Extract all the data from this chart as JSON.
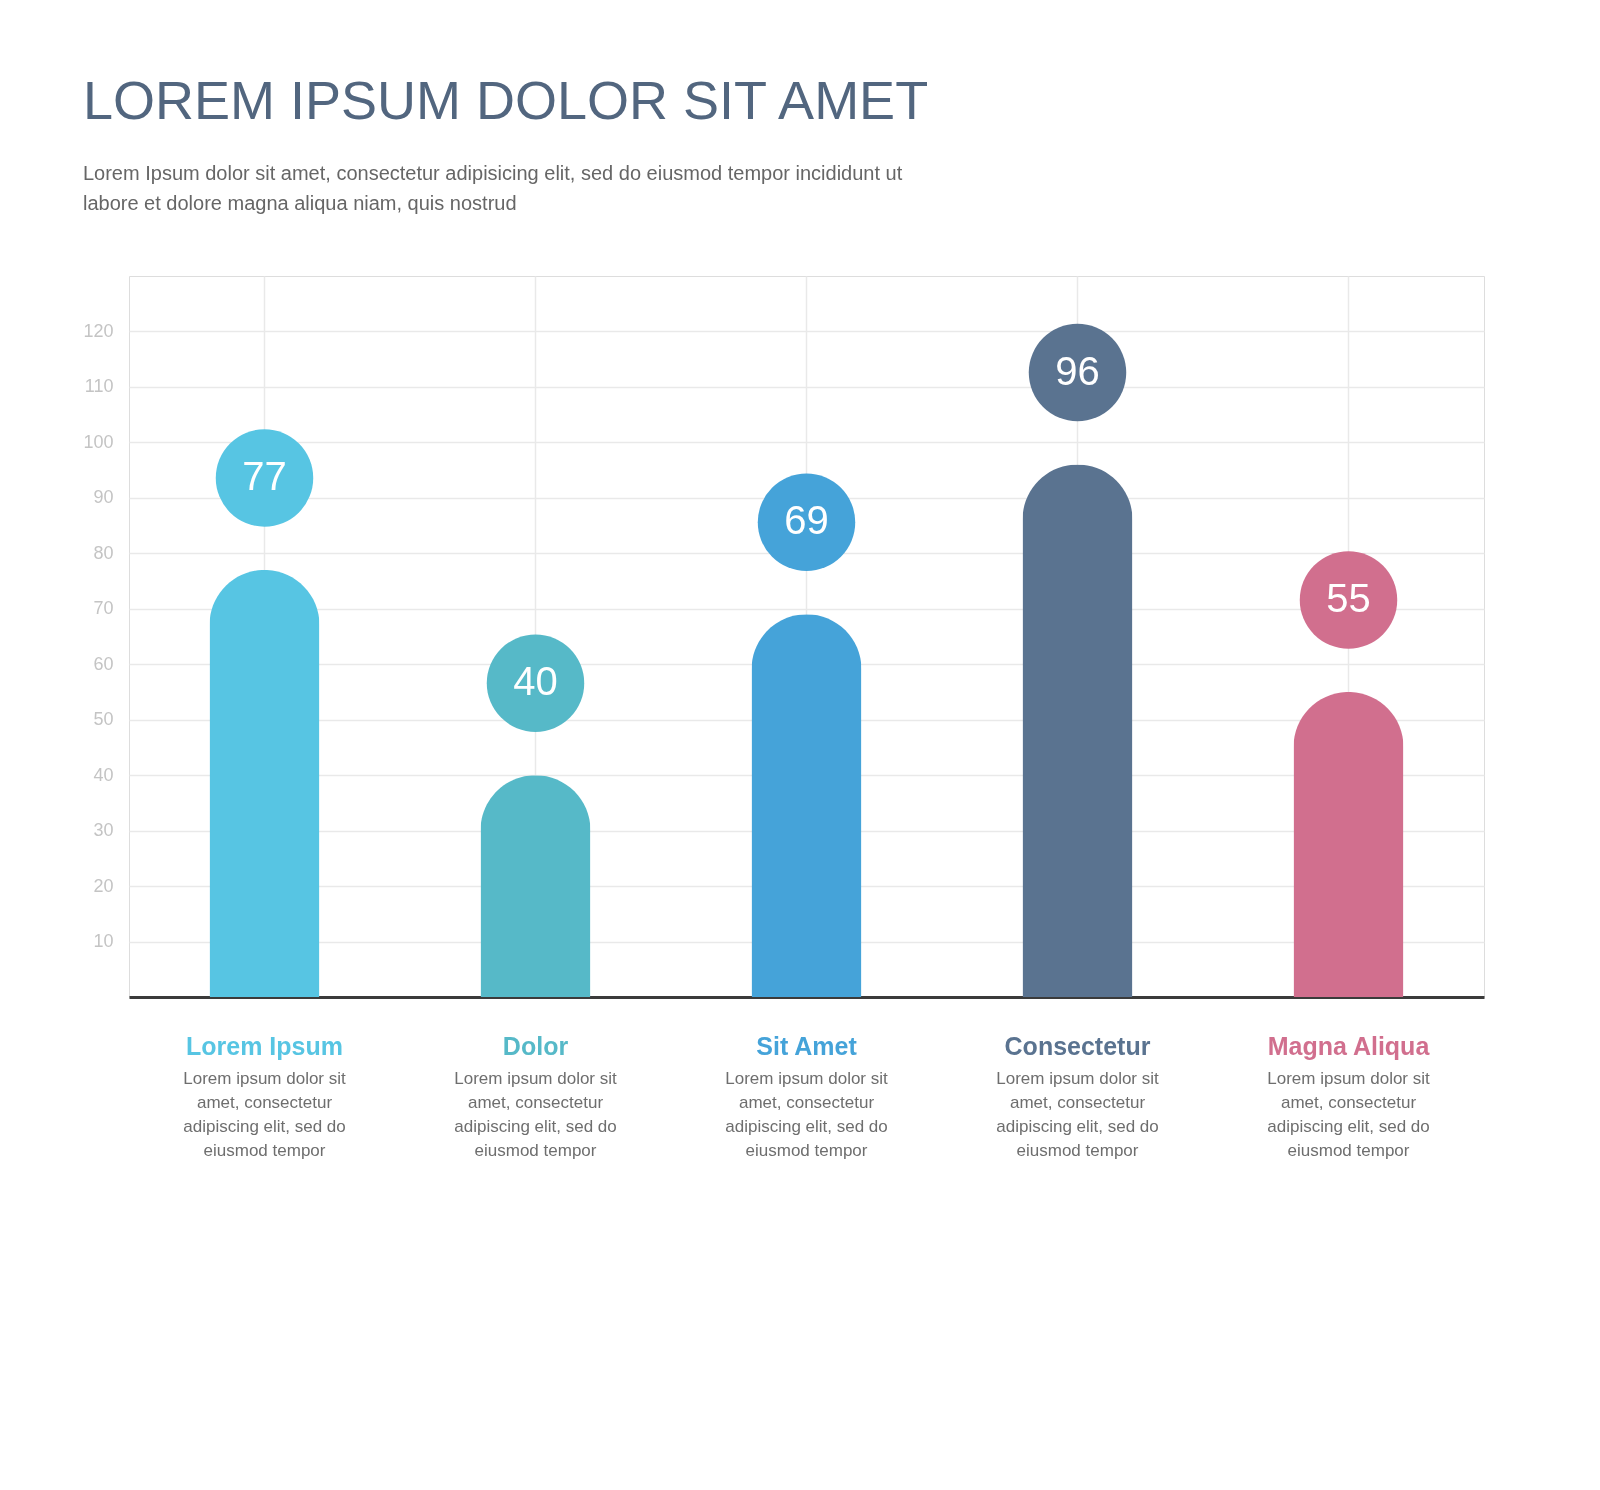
{
  "chart_data": {
    "type": "bar",
    "title": "LOREM IPSUM DOLOR SIT AMET",
    "subtitle": "Lorem Ipsum dolor sit amet, consectetur adipisicing elit, sed do eiusmod tempor incididunt ut labore et dolore magna aliqua niam, quis nostrud",
    "categories": [
      "Lorem Ipsum",
      "Dolor",
      "Sit Amet",
      "Consectetur",
      "Magna Aliqua"
    ],
    "values": [
      77,
      40,
      69,
      96,
      55
    ],
    "colors": [
      "#57c5e3",
      "#56b9c8",
      "#45a3d9",
      "#5a7390",
      "#d16f8e"
    ],
    "ylim": [
      0,
      130
    ],
    "yticks": [
      10,
      20,
      30,
      40,
      50,
      60,
      70,
      80,
      90,
      100,
      110,
      120
    ],
    "grid": true,
    "data_labels": true,
    "annotations": [
      "Lorem ipsum dolor sit amet, consectetur adipiscing elit, sed do eiusmod tempor",
      "Lorem ipsum dolor sit amet, consectetur adipiscing elit, sed do eiusmod tempor",
      "Lorem ipsum dolor sit amet, consectetur adipiscing elit, sed do eiusmod tempor",
      "Lorem ipsum dolor sit amet, consectetur adipiscing elit, sed do eiusmod tempor",
      "Lorem ipsum dolor sit amet, consectetur adipiscing elit, sed do eiusmod tempor"
    ]
  }
}
